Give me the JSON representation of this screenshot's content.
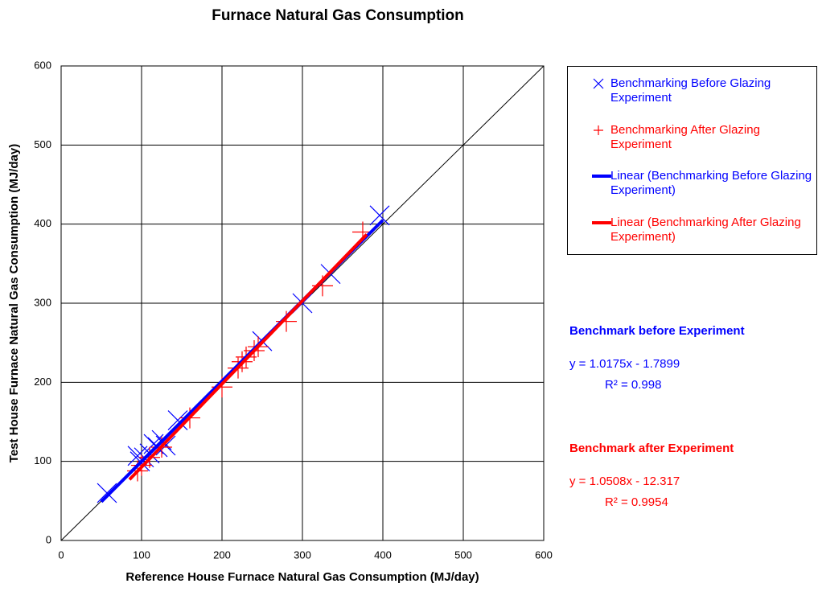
{
  "chart_data": {
    "type": "scatter",
    "title": "Furnace Natural Gas Consumption",
    "x_label": "Reference House Furnace Natural Gas Consumption (MJ/day)",
    "y_label": "Test House Furnace Natural Gas Consumption (MJ/day)",
    "xlim": [
      0,
      600
    ],
    "ylim": [
      0,
      600
    ],
    "xticks": [
      0,
      100,
      200,
      300,
      400,
      500,
      600
    ],
    "yticks": [
      0,
      100,
      200,
      300,
      400,
      500,
      600
    ],
    "grid": true,
    "series": [
      {
        "name": "Benchmarking Before Glazing Experiment",
        "color": "#0000ff",
        "kind": "points",
        "marker": "x",
        "x": [
          57,
          95,
          98,
          103,
          110,
          115,
          120,
          125,
          130,
          145,
          250,
          300,
          335,
          396
        ],
        "values": [
          60,
          107,
          100,
          105,
          110,
          122,
          118,
          127,
          120,
          152,
          252,
          300,
          337,
          411
        ]
      },
      {
        "name": "Benchmarking After Glazing Experiment",
        "color": "#ff0000",
        "kind": "points",
        "marker": "+",
        "x": [
          95,
          100,
          110,
          125,
          160,
          200,
          220,
          225,
          230,
          240,
          245,
          280,
          325,
          375
        ],
        "values": [
          88,
          95,
          105,
          118,
          155,
          194,
          218,
          226,
          232,
          240,
          245,
          277,
          322,
          390
        ]
      },
      {
        "name": "Linear (Benchmarking Before Glazing Experiment)",
        "color": "#0000ff",
        "kind": "line",
        "x": [
          50,
          400
        ],
        "values": [
          49,
          405
        ]
      },
      {
        "name": "Linear (Benchmarking After Glazing Experiment)",
        "color": "#ff0000",
        "kind": "line",
        "x": [
          85,
          380
        ],
        "values": [
          77,
          387
        ]
      }
    ],
    "reference_line": {
      "x": [
        0,
        600
      ],
      "values": [
        0,
        600
      ],
      "color": "#000000"
    },
    "annotations": [
      {
        "text": "Benchmark before Experiment",
        "color": "#0000ff",
        "bold": true
      },
      {
        "text": "y = 1.0175x - 1.7899",
        "color": "#0000ff",
        "bold": false
      },
      {
        "text": "R² = 0.998",
        "color": "#0000ff",
        "bold": false
      },
      {
        "text": "Benchmark after Experiment",
        "color": "#ff0000",
        "bold": true
      },
      {
        "text": "y = 1.0508x - 12.317",
        "color": "#ff0000",
        "bold": false
      },
      {
        "text": "R² = 0.9954",
        "color": "#ff0000",
        "bold": false
      }
    ]
  }
}
